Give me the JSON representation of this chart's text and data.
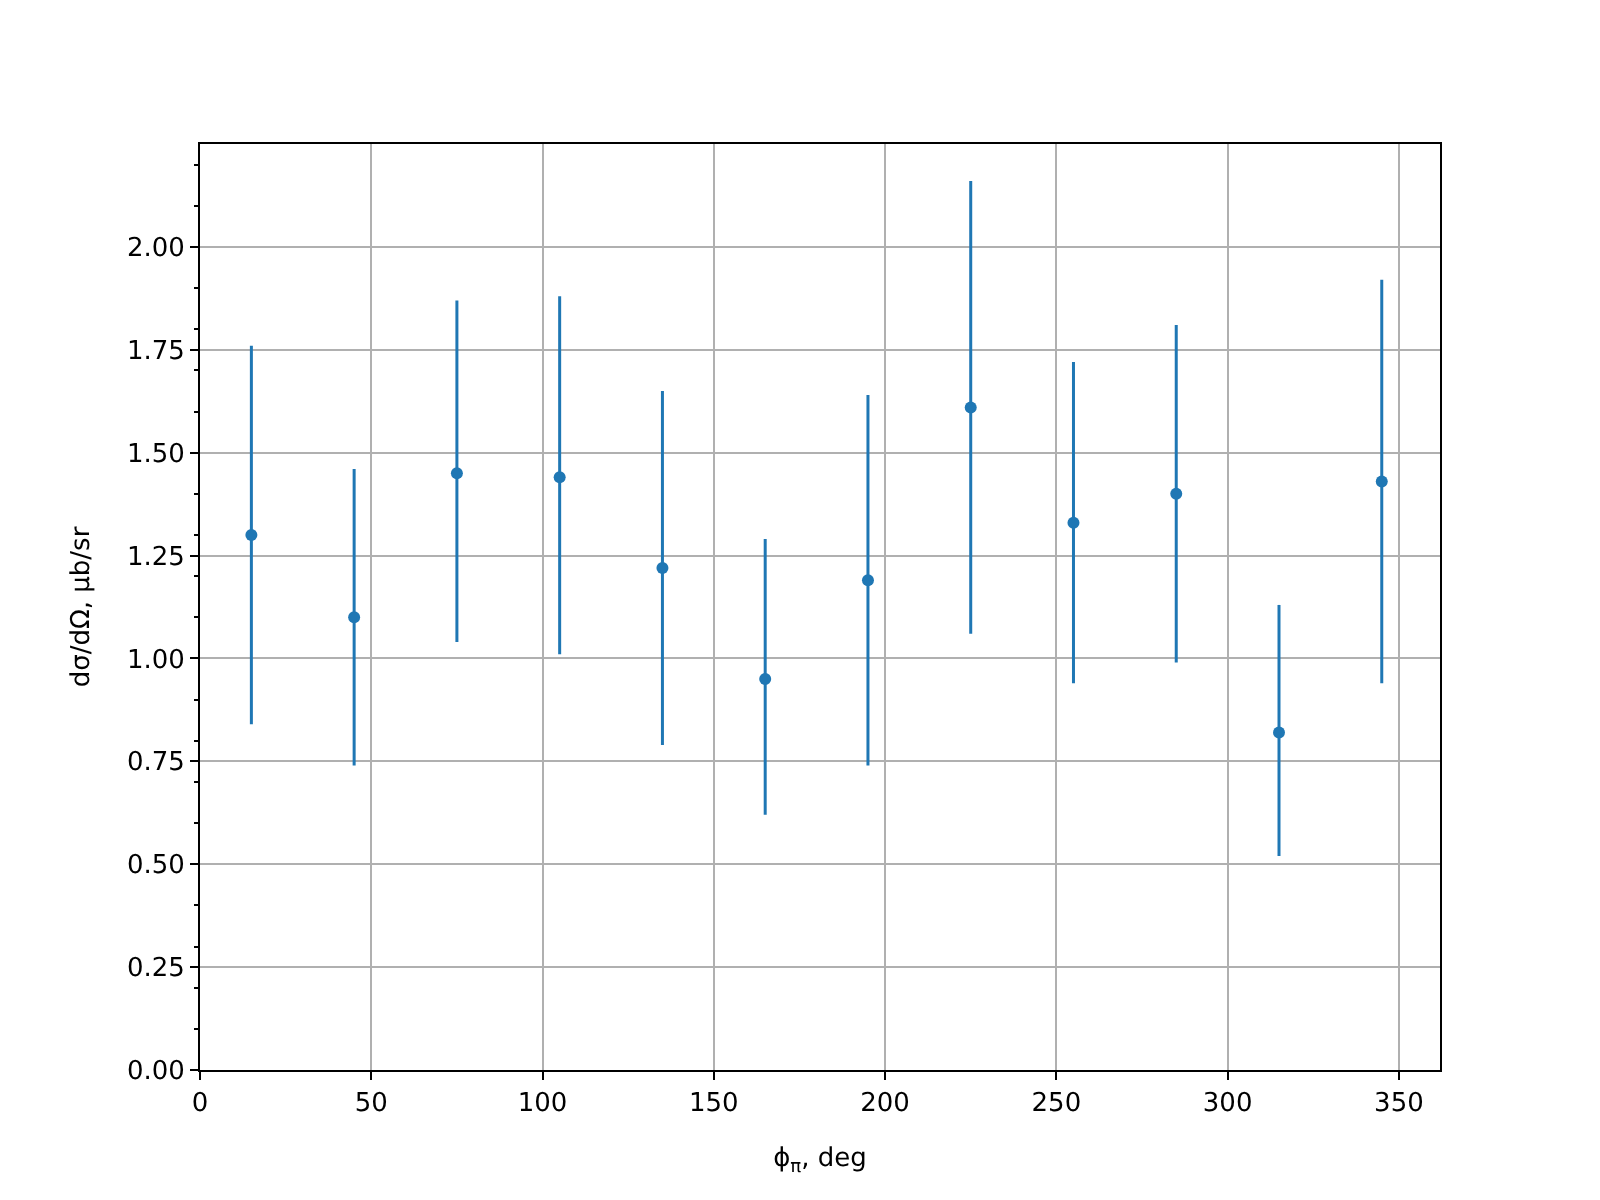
{
  "chart_data": {
    "type": "scatter",
    "xlabel": "ϕ$_{π}$, deg",
    "ylabel": "dσ/dΩ, μb/sr",
    "x": [
      15,
      45,
      75,
      105,
      135,
      165,
      195,
      225,
      255,
      285,
      315,
      345
    ],
    "series": [
      {
        "color": "#1f77b4",
        "values": [
          1.3,
          1.1,
          1.45,
          1.44,
          1.22,
          0.95,
          1.19,
          1.61,
          1.33,
          1.4,
          0.82,
          1.43
        ],
        "errors": [
          [
            0.84,
            1.76
          ],
          [
            0.74,
            1.46
          ],
          [
            1.04,
            1.87
          ],
          [
            1.01,
            1.88
          ],
          [
            0.79,
            1.65
          ],
          [
            0.62,
            1.29
          ],
          [
            0.74,
            1.64
          ],
          [
            1.06,
            2.16
          ],
          [
            0.94,
            1.72
          ],
          [
            0.99,
            1.81
          ],
          [
            0.52,
            1.13
          ],
          [
            0.94,
            1.92
          ]
        ]
      }
    ],
    "xlim": [
      0,
      362
    ],
    "xticks": [
      0,
      50,
      100,
      150,
      200,
      250,
      300,
      350
    ],
    "ylim": [
      0,
      2.25
    ],
    "yticks": [
      {
        "value": 0,
        "label": "0.00"
      },
      {
        "value": 0.25,
        "label": "0.25"
      },
      {
        "value": 0.5,
        "label": "0.50"
      },
      {
        "value": 0.75,
        "label": "0.75"
      },
      {
        "value": 1,
        "label": "1.00"
      },
      {
        "value": 1.25,
        "label": "1.25"
      },
      {
        "value": 1.5,
        "label": "1.50"
      },
      {
        "value": 1.75,
        "label": "1.75"
      },
      {
        "value": 2,
        "label": "2.00"
      }
    ],
    "grid": true,
    "marker": "circle",
    "legend": false
  }
}
